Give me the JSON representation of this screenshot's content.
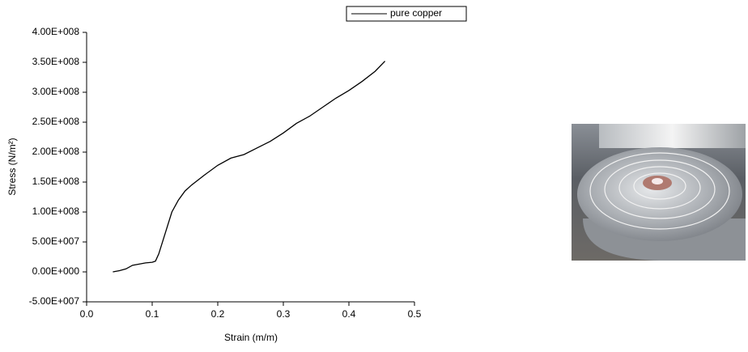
{
  "chart_data": {
    "type": "line",
    "x_label": "Strain (m/m)",
    "y_label": "Stress (N/m²)",
    "x": [
      0.04,
      0.05,
      0.06,
      0.07,
      0.08,
      0.09,
      0.1,
      0.105,
      0.11,
      0.12,
      0.13,
      0.14,
      0.15,
      0.16,
      0.18,
      0.2,
      0.22,
      0.24,
      0.26,
      0.28,
      0.3,
      0.32,
      0.34,
      0.36,
      0.38,
      0.4,
      0.42,
      0.44,
      0.455
    ],
    "series": [
      {
        "name": "pure copper",
        "color": "#000000",
        "values": [
          0,
          2000000,
          5000000,
          11000000,
          13000000,
          15000000,
          16000000,
          18000000,
          30000000,
          65000000,
          100000000,
          120000000,
          135000000,
          145000000,
          162000000,
          178000000,
          190000000,
          196000000,
          207000000,
          218000000,
          232000000,
          248000000,
          260000000,
          275000000,
          290000000,
          303000000,
          318000000,
          335000000,
          352000000
        ]
      }
    ],
    "xlim": [
      0,
      0.5
    ],
    "xticks": [
      {
        "value": 0,
        "label": "0.0"
      },
      0.1,
      0.2,
      0.3,
      0.4,
      {
        "value": 0.5,
        "label": "0.5"
      }
    ],
    "ylim": [
      -50000000,
      400000000
    ],
    "yticks": [
      {
        "value": -50000000,
        "label": "-5.00E+007"
      },
      {
        "value": 0,
        "label": "0.00E+000"
      },
      {
        "value": 50000000,
        "label": "5.00E+007"
      },
      {
        "value": 100000000,
        "label": "1.00E+008"
      },
      {
        "value": 150000000,
        "label": "1.50E+008"
      },
      {
        "value": 200000000,
        "label": "2.00E+008"
      },
      {
        "value": 250000000,
        "label": "2.50E+008"
      },
      {
        "value": 300000000,
        "label": "3.00E+008"
      },
      {
        "value": 350000000,
        "label": "3.50E+008"
      },
      {
        "value": 400000000,
        "label": "4.00E+008"
      }
    ],
    "grid": false,
    "legend": "top"
  }
}
